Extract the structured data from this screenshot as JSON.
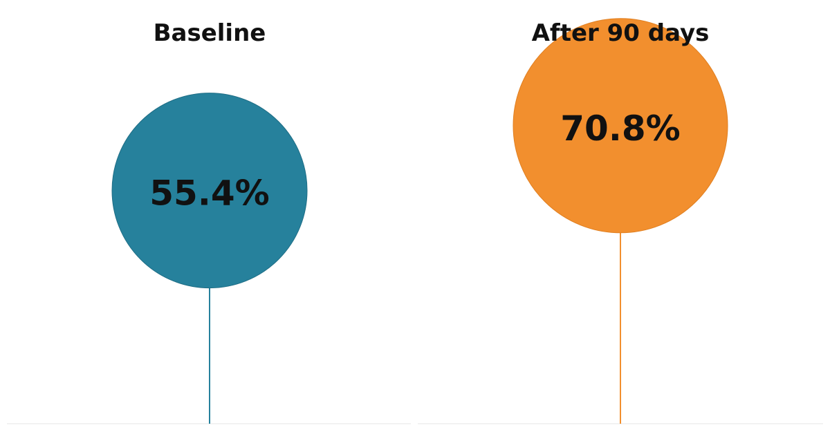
{
  "chart_data": {
    "type": "lollipop",
    "categories": [
      "Baseline",
      "After 90 days"
    ],
    "values": [
      55.4,
      70.8
    ],
    "value_labels": [
      "55.4%",
      "70.8%"
    ],
    "colors": [
      "#26819c",
      "#f28f2e"
    ],
    "ylim": [
      0,
      100
    ],
    "grid": false,
    "legend": "none",
    "title": "",
    "xlabel": "",
    "ylabel": ""
  }
}
